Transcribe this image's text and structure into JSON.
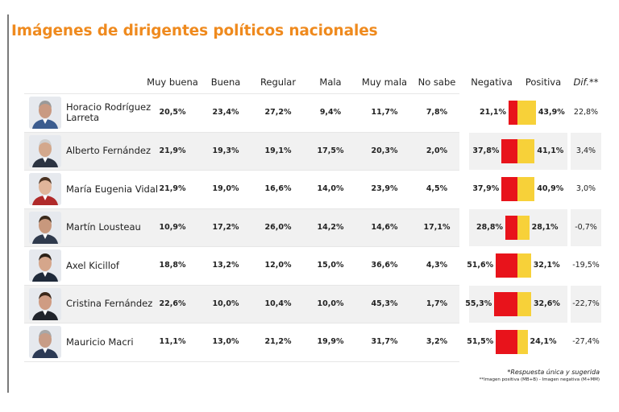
{
  "title": "Imágenes de dirigentes políticos nacionales",
  "headers": {
    "muy_buena": "Muy buena",
    "buena": "Buena",
    "regular": "Regular",
    "mala": "Mala",
    "muy_mala": "Muy mala",
    "no_sabe": "No sabe",
    "negativa": "Negativa",
    "positiva": "Positiva",
    "dif": "Dif.**"
  },
  "rows": [
    {
      "name": "Horacio Rodríguez Larreta",
      "muy_buena": "20,5%",
      "buena": "23,4%",
      "regular": "27,2%",
      "mala": "9,4%",
      "muy_mala": "11,7%",
      "no_sabe": "7,8%",
      "negativa": "21,1%",
      "positiva": "43,9%",
      "dif": "22,8%"
    },
    {
      "name": "Alberto Fernández",
      "muy_buena": "21,9%",
      "buena": "19,3%",
      "regular": "19,1%",
      "mala": "17,5%",
      "muy_mala": "20,3%",
      "no_sabe": "2,0%",
      "negativa": "37,8%",
      "positiva": "41,1%",
      "dif": "3,4%"
    },
    {
      "name": "María Eugenia Vidal",
      "muy_buena": "21,9%",
      "buena": "19,0%",
      "regular": "16,6%",
      "mala": "14,0%",
      "muy_mala": "23,9%",
      "no_sabe": "4,5%",
      "negativa": "37,9%",
      "positiva": "40,9%",
      "dif": "3,0%"
    },
    {
      "name": "Martín Lousteau",
      "muy_buena": "10,9%",
      "buena": "17,2%",
      "regular": "26,0%",
      "mala": "14,2%",
      "muy_mala": "14,6%",
      "no_sabe": "17,1%",
      "negativa": "28,8%",
      "positiva": "28,1%",
      "dif": "-0,7%"
    },
    {
      "name": "Axel Kicillof",
      "muy_buena": "18,8%",
      "buena": "13,2%",
      "regular": "12,0%",
      "mala": "15,0%",
      "muy_mala": "36,6%",
      "no_sabe": "4,3%",
      "negativa": "51,6%",
      "positiva": "32,1%",
      "dif": "-19,5%"
    },
    {
      "name": "Cristina Fernández",
      "muy_buena": "22,6%",
      "buena": "10,0%",
      "regular": "10,4%",
      "mala": "10,0%",
      "muy_mala": "45,3%",
      "no_sabe": "1,7%",
      "negativa": "55,3%",
      "positiva": "32,6%",
      "dif": "-22,7%"
    },
    {
      "name": "Mauricio Macri",
      "muy_buena": "11,1%",
      "buena": "13,0%",
      "regular": "21,2%",
      "mala": "19,9%",
      "muy_mala": "31,7%",
      "no_sabe": "3,2%",
      "negativa": "51,5%",
      "positiva": "24,1%",
      "dif": "-27,4%"
    }
  ],
  "footnote1": "*Respuesta única y sugerida",
  "footnote2": "**Imagen positiva (MB+B) - Imagen negativa (M+MM)",
  "colors": {
    "title": "#ef8a1e",
    "negativa": "#e8131b",
    "positiva": "#f7d139"
  },
  "chart_data": {
    "type": "bar",
    "title": "Imágenes de dirigentes políticos nacionales",
    "categories": [
      "Horacio Rodríguez Larreta",
      "Alberto Fernández",
      "María Eugenia Vidal",
      "Martín Lousteau",
      "Axel Kicillof",
      "Cristina Fernández",
      "Mauricio Macri"
    ],
    "series": [
      {
        "name": "Negativa",
        "values": [
          21.1,
          37.8,
          37.9,
          28.8,
          51.6,
          55.3,
          51.5
        ]
      },
      {
        "name": "Positiva",
        "values": [
          43.9,
          41.1,
          40.9,
          28.1,
          32.1,
          32.6,
          24.1
        ]
      }
    ],
    "orientation": "horizontal-diverging",
    "legend": "top",
    "grid": false
  }
}
